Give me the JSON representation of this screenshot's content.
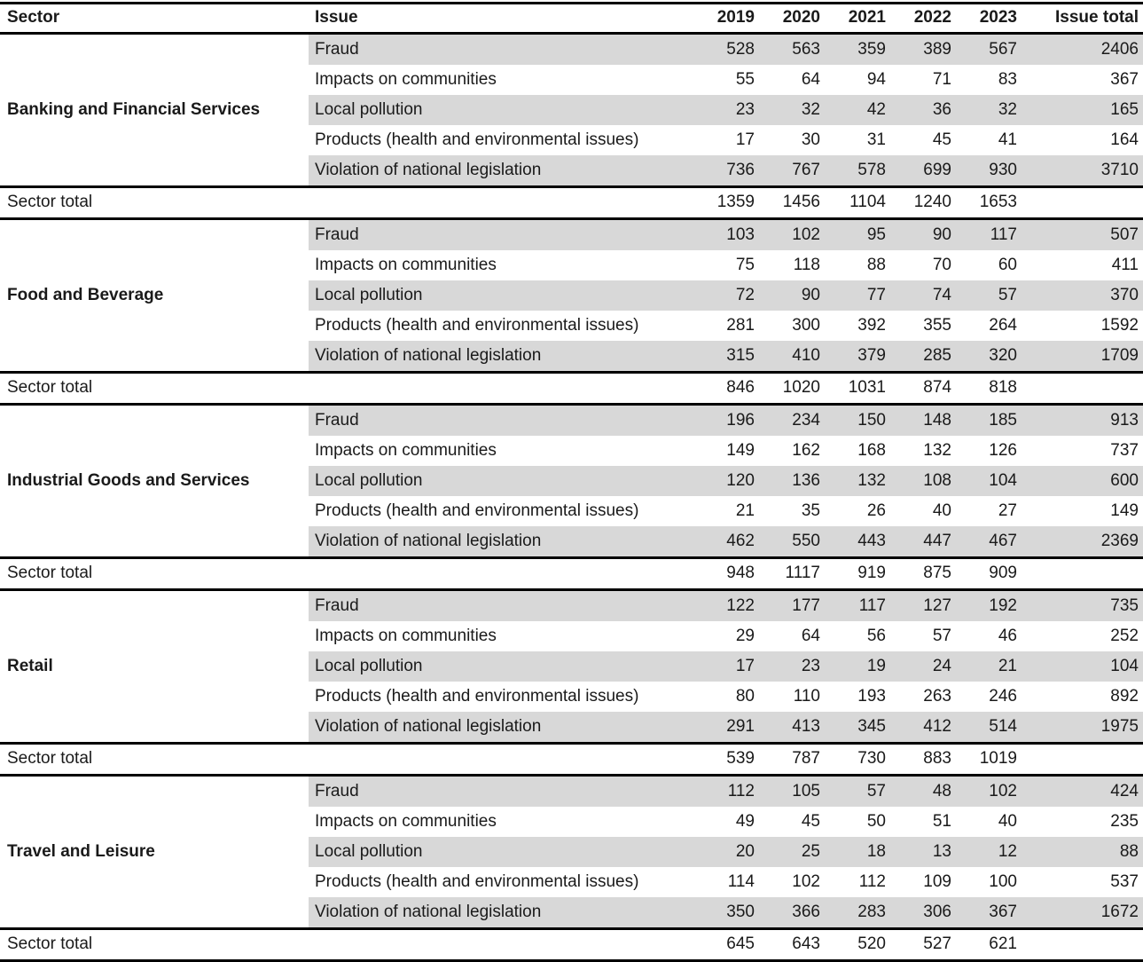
{
  "styles": {
    "row_shading_color": "#d8d8d8",
    "rule_color": "#000000",
    "text_color": "#1a1a1a"
  },
  "chart_data": {
    "type": "table",
    "columns": [
      "Sector",
      "Issue",
      "2019",
      "2020",
      "2021",
      "2022",
      "2023",
      "Issue total"
    ],
    "sector_total_label": "Sector total",
    "sectors": [
      {
        "name": "Banking and Financial Services",
        "issues": [
          {
            "issue": "Fraud",
            "values": [
              528,
              563,
              359,
              389,
              567
            ],
            "issue_total": 2406
          },
          {
            "issue": "Impacts on communities",
            "values": [
              55,
              64,
              94,
              71,
              83
            ],
            "issue_total": 367
          },
          {
            "issue": "Local pollution",
            "values": [
              23,
              32,
              42,
              36,
              32
            ],
            "issue_total": 165
          },
          {
            "issue": "Products (health and environmental issues)",
            "values": [
              17,
              30,
              31,
              45,
              41
            ],
            "issue_total": 164
          },
          {
            "issue": "Violation of national legislation",
            "values": [
              736,
              767,
              578,
              699,
              930
            ],
            "issue_total": 3710
          }
        ],
        "sector_total": [
          1359,
          1456,
          1104,
          1240,
          1653
        ]
      },
      {
        "name": "Food and Beverage",
        "issues": [
          {
            "issue": "Fraud",
            "values": [
              103,
              102,
              95,
              90,
              117
            ],
            "issue_total": 507
          },
          {
            "issue": "Impacts on communities",
            "values": [
              75,
              118,
              88,
              70,
              60
            ],
            "issue_total": 411
          },
          {
            "issue": "Local pollution",
            "values": [
              72,
              90,
              77,
              74,
              57
            ],
            "issue_total": 370
          },
          {
            "issue": "Products (health and environmental issues)",
            "values": [
              281,
              300,
              392,
              355,
              264
            ],
            "issue_total": 1592
          },
          {
            "issue": "Violation of national legislation",
            "values": [
              315,
              410,
              379,
              285,
              320
            ],
            "issue_total": 1709
          }
        ],
        "sector_total": [
          846,
          1020,
          1031,
          874,
          818
        ]
      },
      {
        "name": "Industrial Goods and Services",
        "issues": [
          {
            "issue": "Fraud",
            "values": [
              196,
              234,
              150,
              148,
              185
            ],
            "issue_total": 913
          },
          {
            "issue": "Impacts on communities",
            "values": [
              149,
              162,
              168,
              132,
              126
            ],
            "issue_total": 737
          },
          {
            "issue": "Local pollution",
            "values": [
              120,
              136,
              132,
              108,
              104
            ],
            "issue_total": 600
          },
          {
            "issue": "Products (health and environmental issues)",
            "values": [
              21,
              35,
              26,
              40,
              27
            ],
            "issue_total": 149
          },
          {
            "issue": "Violation of national legislation",
            "values": [
              462,
              550,
              443,
              447,
              467
            ],
            "issue_total": 2369
          }
        ],
        "sector_total": [
          948,
          1117,
          919,
          875,
          909
        ]
      },
      {
        "name": "Retail",
        "issues": [
          {
            "issue": "Fraud",
            "values": [
              122,
              177,
              117,
              127,
              192
            ],
            "issue_total": 735
          },
          {
            "issue": "Impacts on communities",
            "values": [
              29,
              64,
              56,
              57,
              46
            ],
            "issue_total": 252
          },
          {
            "issue": "Local pollution",
            "values": [
              17,
              23,
              19,
              24,
              21
            ],
            "issue_total": 104
          },
          {
            "issue": "Products (health and environmental issues)",
            "values": [
              80,
              110,
              193,
              263,
              246
            ],
            "issue_total": 892
          },
          {
            "issue": "Violation of national legislation",
            "values": [
              291,
              413,
              345,
              412,
              514
            ],
            "issue_total": 1975
          }
        ],
        "sector_total": [
          539,
          787,
          730,
          883,
          1019
        ]
      },
      {
        "name": "Travel and Leisure",
        "issues": [
          {
            "issue": "Fraud",
            "values": [
              112,
              105,
              57,
              48,
              102
            ],
            "issue_total": 424
          },
          {
            "issue": "Impacts on communities",
            "values": [
              49,
              45,
              50,
              51,
              40
            ],
            "issue_total": 235
          },
          {
            "issue": "Local pollution",
            "values": [
              20,
              25,
              18,
              13,
              12
            ],
            "issue_total": 88
          },
          {
            "issue": "Products (health and environmental issues)",
            "values": [
              114,
              102,
              112,
              109,
              100
            ],
            "issue_total": 537
          },
          {
            "issue": "Violation of national legislation",
            "values": [
              350,
              366,
              283,
              306,
              367
            ],
            "issue_total": 1672
          }
        ],
        "sector_total": [
          645,
          643,
          520,
          527,
          621
        ]
      }
    ]
  }
}
